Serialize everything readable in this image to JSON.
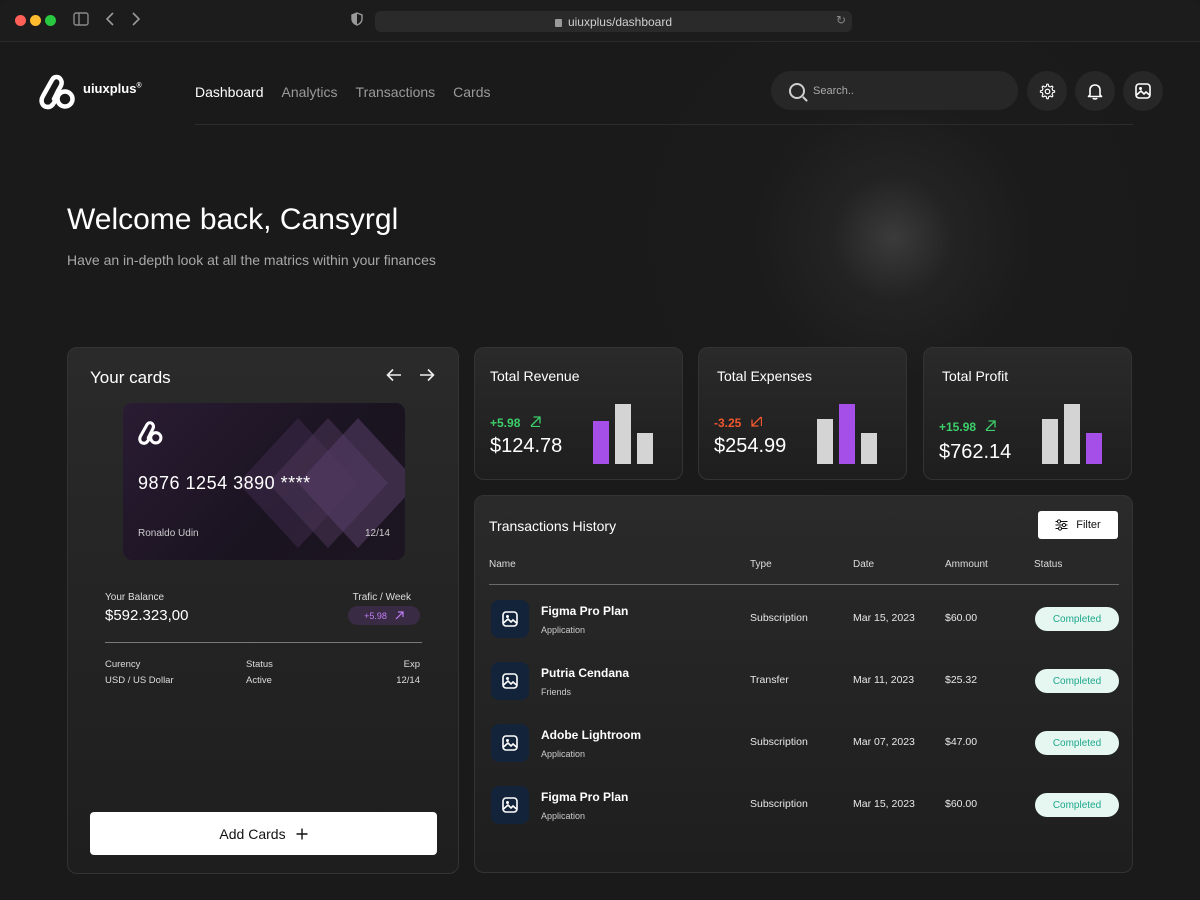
{
  "browser": {
    "url": "uiuxplus/dashboard"
  },
  "brand": {
    "name": "uiuxplus",
    "trademark": "®"
  },
  "nav": {
    "items": [
      {
        "label": "Dashboard",
        "active": true
      },
      {
        "label": "Analytics",
        "active": false
      },
      {
        "label": "Transactions",
        "active": false
      },
      {
        "label": "Cards",
        "active": false
      }
    ]
  },
  "search": {
    "placeholder": "Search.."
  },
  "hero": {
    "title": "Welcome back, Cansyrgl",
    "subtitle": "Have an in-depth look at all the matrics within your finances"
  },
  "cards": {
    "title": "Your cards",
    "card": {
      "number": "9876 1254 3890 ****",
      "holder": "Ronaldo Udin",
      "expiry": "12/14"
    },
    "balance_label": "Your Balance",
    "balance_value": "$592.323,00",
    "traffic_label": "Trafic / Week",
    "traffic_value": "+5.98",
    "meta": [
      {
        "label": "Curency",
        "value": "USD / US Dollar"
      },
      {
        "label": "Status",
        "value": "Active"
      },
      {
        "label": "Exp",
        "value": "12/14"
      }
    ],
    "add_button": "Add Cards"
  },
  "stats": [
    {
      "title": "Total Revenue",
      "change": "+5.98",
      "direction": "up",
      "value": "$124.78",
      "bars": [
        0.72,
        1.0,
        0.52
      ],
      "highlight": 0
    },
    {
      "title": "Total Expenses",
      "change": "-3.25",
      "direction": "down",
      "value": "$254.99",
      "bars": [
        0.75,
        1.0,
        0.52
      ],
      "highlight": 1
    },
    {
      "title": "Total Profit",
      "change": "+15.98",
      "direction": "up",
      "value": "$762.14",
      "bars": [
        0.75,
        1.0,
        0.52
      ],
      "highlight": 2
    }
  ],
  "colors": {
    "accent": "#a64ee8",
    "up": "#3ccf6a",
    "down": "#f0572d",
    "bar_neutral": "#d4d4d4",
    "status_bg": "#e6f7f2",
    "status_text": "#1ea88a"
  },
  "transactions": {
    "title": "Transactions History",
    "filter_label": "Filter",
    "columns": [
      "Name",
      "Type",
      "Date",
      "Ammount",
      "Status"
    ],
    "rows": [
      {
        "name": "Figma Pro Plan",
        "category": "Application",
        "type": "Subscription",
        "date": "Mar 15, 2023",
        "amount": "$60.00",
        "status": "Completed"
      },
      {
        "name": "Putria Cendana",
        "category": "Friends",
        "type": "Transfer",
        "date": "Mar 11, 2023",
        "amount": "$25.32",
        "status": "Completed"
      },
      {
        "name": "Adobe Lightroom",
        "category": "Application",
        "type": "Subscription",
        "date": "Mar 07, 2023",
        "amount": "$47.00",
        "status": "Completed"
      },
      {
        "name": "Figma Pro Plan",
        "category": "Application",
        "type": "Subscription",
        "date": "Mar 15, 2023",
        "amount": "$60.00",
        "status": "Completed"
      }
    ]
  }
}
